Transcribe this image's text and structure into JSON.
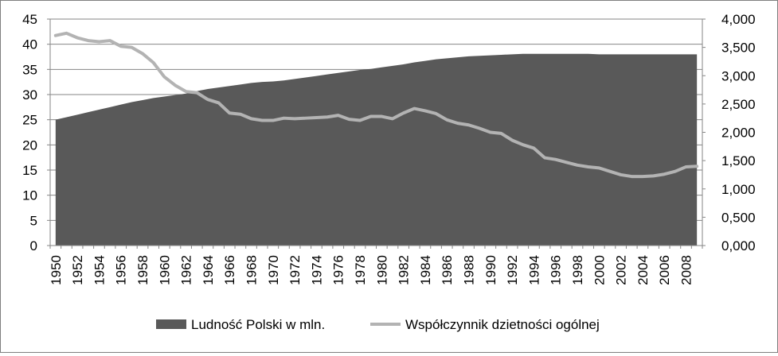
{
  "chart_data": {
    "type": "area",
    "x": [
      "1950",
      "1951",
      "1952",
      "1953",
      "1954",
      "1955",
      "1956",
      "1957",
      "1958",
      "1959",
      "1960",
      "1961",
      "1962",
      "1963",
      "1964",
      "1965",
      "1966",
      "1967",
      "1968",
      "1969",
      "1970",
      "1971",
      "1972",
      "1973",
      "1974",
      "1975",
      "1976",
      "1977",
      "1978",
      "1979",
      "1980",
      "1981",
      "1982",
      "1983",
      "1984",
      "1985",
      "1986",
      "1987",
      "1988",
      "1989",
      "1990",
      "1991",
      "1992",
      "1993",
      "1994",
      "1995",
      "1996",
      "1997",
      "1998",
      "1999",
      "2000",
      "2001",
      "2002",
      "2003",
      "2004",
      "2005",
      "2006",
      "2007",
      "2008",
      "2009"
    ],
    "x_tick_labels": [
      "1950",
      "1952",
      "1954",
      "1956",
      "1958",
      "1960",
      "1962",
      "1964",
      "1966",
      "1968",
      "1970",
      "1972",
      "1974",
      "1976",
      "1978",
      "1980",
      "1982",
      "1984",
      "1986",
      "1988",
      "1990",
      "1992",
      "1994",
      "1996",
      "1998",
      "2000",
      "2002",
      "2004",
      "2006",
      "2008"
    ],
    "series": [
      {
        "name": "Ludność Polski w mln.",
        "type": "area",
        "axis": "left",
        "color": "#595959",
        "values": [
          25.0,
          25.5,
          26.0,
          26.5,
          27.0,
          27.5,
          28.0,
          28.5,
          28.9,
          29.3,
          29.6,
          29.9,
          30.2,
          30.7,
          31.1,
          31.4,
          31.7,
          32.0,
          32.3,
          32.5,
          32.6,
          32.8,
          33.1,
          33.4,
          33.7,
          34.0,
          34.3,
          34.6,
          34.9,
          35.1,
          35.4,
          35.7,
          36.0,
          36.4,
          36.7,
          37.0,
          37.2,
          37.4,
          37.6,
          37.7,
          37.8,
          37.9,
          38.0,
          38.1,
          38.1,
          38.1,
          38.1,
          38.1,
          38.1,
          38.1,
          38.0,
          38.0,
          38.0,
          38.0,
          38.0,
          38.0,
          38.0,
          38.0,
          38.0,
          38.0
        ]
      },
      {
        "name": "Współczynnik dzietności ogólnej",
        "type": "line",
        "axis": "right",
        "color": "#b3b3b3",
        "values": [
          3.71,
          3.75,
          3.67,
          3.62,
          3.6,
          3.62,
          3.52,
          3.5,
          3.39,
          3.23,
          2.98,
          2.83,
          2.72,
          2.7,
          2.58,
          2.52,
          2.34,
          2.32,
          2.24,
          2.21,
          2.21,
          2.25,
          2.24,
          2.25,
          2.26,
          2.27,
          2.3,
          2.23,
          2.21,
          2.28,
          2.28,
          2.24,
          2.34,
          2.42,
          2.38,
          2.33,
          2.22,
          2.16,
          2.13,
          2.07,
          2.0,
          1.98,
          1.86,
          1.78,
          1.72,
          1.55,
          1.52,
          1.47,
          1.42,
          1.39,
          1.37,
          1.31,
          1.25,
          1.22,
          1.22,
          1.23,
          1.26,
          1.31,
          1.39,
          1.4
        ]
      }
    ],
    "yleft": {
      "lim": [
        0,
        45
      ],
      "ticks": [
        "0",
        "5",
        "10",
        "15",
        "20",
        "25",
        "30",
        "35",
        "40",
        "45"
      ]
    },
    "yright": {
      "lim": [
        0,
        4
      ],
      "ticks": [
        "0,000",
        "0,500",
        "1,000",
        "1,500",
        "2,000",
        "2,500",
        "3,000",
        "3,500",
        "4,000"
      ]
    },
    "grid": true,
    "legend_position": "bottom"
  }
}
